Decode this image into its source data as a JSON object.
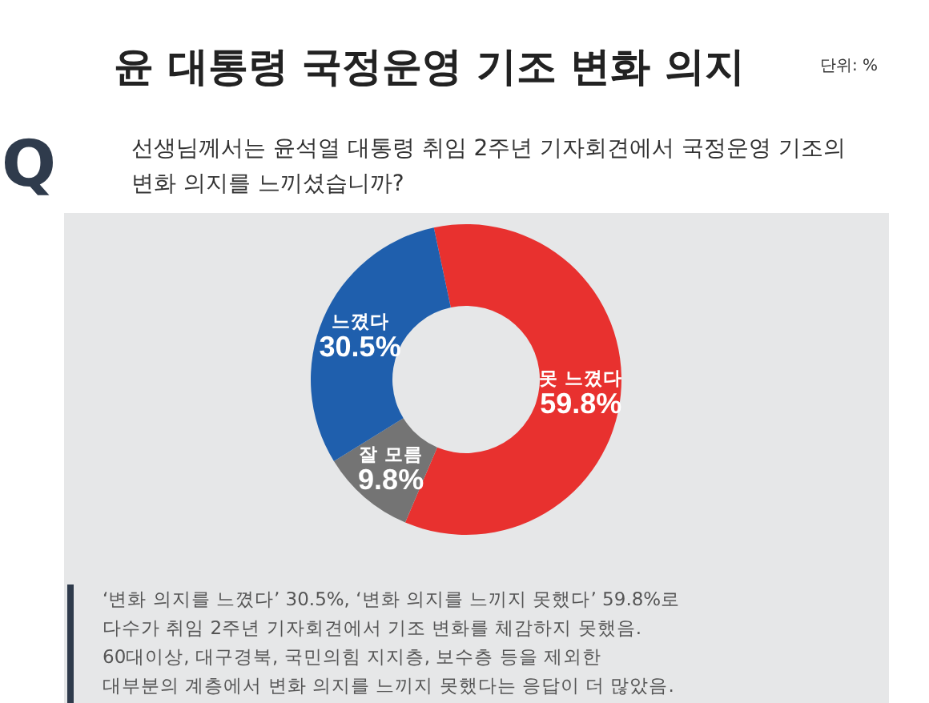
{
  "chart_data": {
    "type": "donut",
    "title": "윤 대통령 국정운영 기조 변화 의지",
    "subtitle": "선생님께서는 윤석열 대통령 취임 2주년 기자회견에서 국정운영 기조의\n변화 의지를 느끼셨습니까?",
    "categories": [
      "못 느꼈다",
      "잘 모름",
      "느꼈다"
    ],
    "values": [
      59.8,
      9.8,
      30.5
    ],
    "colors": [
      "#e8312f",
      "#747474",
      "#1f5fad"
    ],
    "value_labels": [
      "59.8%",
      "9.8%",
      "30.5%"
    ],
    "annotations": [
      "단위: %",
      "Q",
      "‘변화 의지를 느꼈다’ 30.5%, ‘변화 의지를 느끼지 못했다’ 59.8%로\n다수가 취임 2주년 기자회견에서 기조 변화를 체감하지 못했음.\n60대이상, 대구경북, 국민의힘 지지층, 보수층 등을 제외한\n대부분의 계층에서 변화 의지를 느끼지 못했다는 응답이 더 많았음."
    ],
    "legend": false
  }
}
